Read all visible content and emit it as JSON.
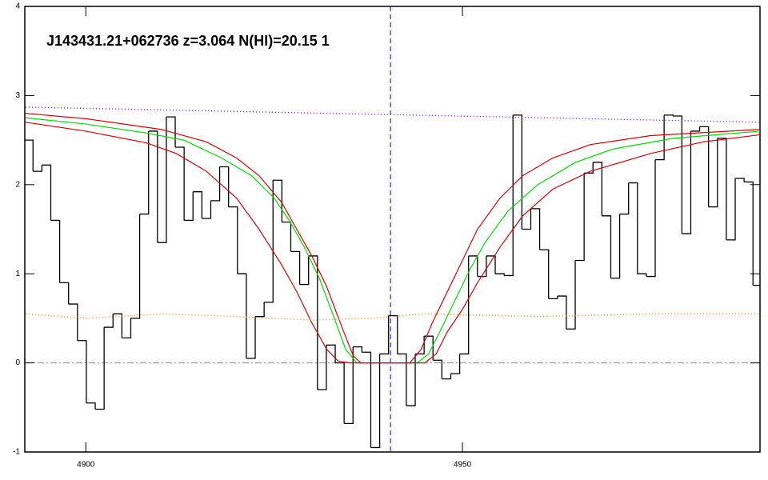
{
  "chart_data": {
    "type": "line",
    "title": "J143431.21+062736 z=3.064 N(HI)=20.15 1",
    "xlim": [
      4891.9,
      4989.5
    ],
    "ylim": [
      -1,
      4
    ],
    "xticks": [
      4900,
      4950
    ],
    "yticks": [
      -1,
      0,
      1,
      2,
      3,
      4
    ],
    "vlines": [
      {
        "x": 4940.45,
        "color": "#0000cc"
      }
    ],
    "hlines": [
      {
        "y": 0,
        "color": "#888888"
      }
    ],
    "series": [
      {
        "color": "#000000",
        "drawstyle": "steps-mid",
        "x": [
          4892.4,
          4893.58,
          4894.76,
          4895.94,
          4897.12,
          4898.3,
          4899.48,
          4900.66,
          4901.84,
          4903.02,
          4904.2,
          4905.38,
          4906.56,
          4907.74,
          4908.92,
          4910.1,
          4911.28,
          4912.46,
          4913.64,
          4914.82,
          4916.0,
          4917.18,
          4918.36,
          4919.54,
          4920.72,
          4921.9,
          4923.08,
          4924.26,
          4925.44,
          4926.62,
          4927.8,
          4928.98,
          4930.16,
          4931.34,
          4932.52,
          4933.7,
          4934.88,
          4936.06,
          4937.24,
          4938.42,
          4939.6,
          4940.78,
          4941.96,
          4943.14,
          4944.32,
          4945.5,
          4946.68,
          4947.86,
          4949.04,
          4950.22,
          4951.4,
          4952.58,
          4953.76,
          4954.94,
          4956.12,
          4957.3,
          4958.48,
          4959.66,
          4960.84,
          4962.02,
          4963.2,
          4964.38,
          4965.56,
          4966.74,
          4967.92,
          4969.1,
          4970.28,
          4971.46,
          4972.64,
          4973.82,
          4975.0,
          4976.18,
          4977.36,
          4978.54,
          4979.72,
          4980.9,
          4982.08,
          4983.26,
          4984.44,
          4985.62,
          4986.8,
          4987.98,
          4989.16
        ],
        "values": [
          2.5,
          2.15,
          2.22,
          1.6,
          0.9,
          0.66,
          0.25,
          -0.45,
          -0.52,
          0.4,
          0.55,
          0.28,
          0.5,
          1.67,
          2.6,
          1.35,
          2.76,
          2.42,
          1.6,
          1.92,
          1.62,
          1.82,
          2.2,
          1.75,
          1.0,
          0.05,
          0.52,
          0.68,
          2.05,
          1.58,
          1.25,
          0.88,
          1.2,
          -0.3,
          0.2,
          0.0,
          -0.68,
          0.18,
          0.12,
          -0.95,
          0.1,
          0.53,
          0.1,
          -0.48,
          0.1,
          0.3,
          0.03,
          -0.18,
          -0.12,
          0.1,
          1.2,
          0.97,
          1.2,
          1.0,
          0.98,
          2.78,
          1.5,
          1.73,
          1.27,
          0.72,
          0.75,
          0.38,
          1.15,
          2.13,
          2.25,
          1.65,
          0.95,
          1.67,
          2.02,
          1.0,
          0.97,
          2.28,
          2.78,
          2.77,
          1.45,
          2.6,
          2.65,
          1.75,
          2.52,
          1.38,
          2.07,
          2.03,
          0.87
        ]
      },
      {
        "color": "#00dd00",
        "drawstyle": "line",
        "x": [
          4892,
          4900,
          4908,
          4913,
          4918,
          4922,
          4925,
          4927,
          4929,
          4931,
          4933,
          4934.5,
          4936,
          4944,
          4945.5,
          4947,
          4949,
          4951,
          4953,
          4956,
          4960,
          4965,
          4970,
          4978,
          4989.5
        ],
        "values": [
          2.75,
          2.68,
          2.58,
          2.5,
          2.3,
          2.1,
          1.85,
          1.6,
          1.3,
          0.95,
          0.5,
          0.15,
          0.0,
          0.0,
          0.1,
          0.35,
          0.7,
          1.05,
          1.35,
          1.7,
          2.0,
          2.25,
          2.4,
          2.52,
          2.6
        ]
      },
      {
        "color": "#dd0000",
        "drawstyle": "line",
        "x": [
          4892,
          4900,
          4910,
          4916,
          4920,
          4923,
          4926,
          4928,
          4930,
          4932,
          4934,
          4935.5,
          4936.5,
          4943,
          4944.5,
          4946,
          4948,
          4950,
          4952,
          4955,
          4958,
          4962,
          4967,
          4975,
          4989.5
        ],
        "values": [
          2.8,
          2.74,
          2.62,
          2.48,
          2.3,
          2.1,
          1.8,
          1.5,
          1.2,
          0.85,
          0.4,
          0.08,
          0.0,
          0.0,
          0.15,
          0.45,
          0.8,
          1.15,
          1.5,
          1.85,
          2.1,
          2.3,
          2.45,
          2.55,
          2.62
        ]
      },
      {
        "color": "#dd0000",
        "drawstyle": "line",
        "x": [
          4892,
          4900,
          4908,
          4912,
          4916,
          4920,
          4923,
          4926,
          4928,
          4930,
          4932,
          4933.5,
          4935,
          4945,
          4946.5,
          4948,
          4950,
          4952,
          4955,
          4958,
          4962,
          4967,
          4975,
          4982,
          4989.5
        ],
        "values": [
          2.7,
          2.6,
          2.47,
          2.35,
          2.15,
          1.85,
          1.5,
          1.1,
          0.8,
          0.45,
          0.15,
          0.02,
          0.0,
          0.0,
          0.1,
          0.35,
          0.6,
          0.9,
          1.3,
          1.65,
          1.95,
          2.15,
          2.35,
          2.48,
          2.56
        ]
      },
      {
        "color": "#7f00ff",
        "drawstyle": "dotted",
        "x": [
          4892,
          4989.5
        ],
        "values": [
          2.87,
          2.7
        ]
      },
      {
        "color": "#ff8000",
        "drawstyle": "dotted",
        "x": [
          4892,
          4900,
          4910,
          4920,
          4930,
          4938,
          4945,
          4960,
          4975,
          4989.5
        ],
        "values": [
          0.55,
          0.5,
          0.55,
          0.52,
          0.48,
          0.5,
          0.55,
          0.52,
          0.55,
          0.55
        ]
      }
    ]
  }
}
